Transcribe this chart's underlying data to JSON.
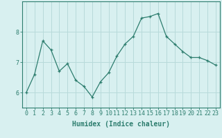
{
  "xlabel": "Humidex (Indice chaleur)",
  "ylabel": "",
  "x": [
    0,
    1,
    2,
    3,
    4,
    5,
    6,
    7,
    8,
    9,
    10,
    11,
    12,
    13,
    14,
    15,
    16,
    17,
    18,
    19,
    20,
    21,
    22,
    23
  ],
  "y": [
    6.0,
    6.6,
    7.7,
    7.4,
    6.7,
    6.95,
    6.4,
    6.2,
    5.85,
    6.35,
    6.65,
    7.2,
    7.6,
    7.85,
    8.45,
    8.5,
    8.6,
    7.85,
    7.6,
    7.35,
    7.15,
    7.15,
    7.05,
    6.9
  ],
  "line_color": "#2d7d6e",
  "marker": "+",
  "marker_size": 3,
  "bg_color": "#d8f0f0",
  "grid_color": "#b8dada",
  "yticks": [
    6,
    7,
    8
  ],
  "ylim": [
    5.5,
    9.0
  ],
  "xlim": [
    -0.5,
    23.5
  ],
  "title_fontsize": 7,
  "label_fontsize": 7,
  "tick_fontsize": 6
}
